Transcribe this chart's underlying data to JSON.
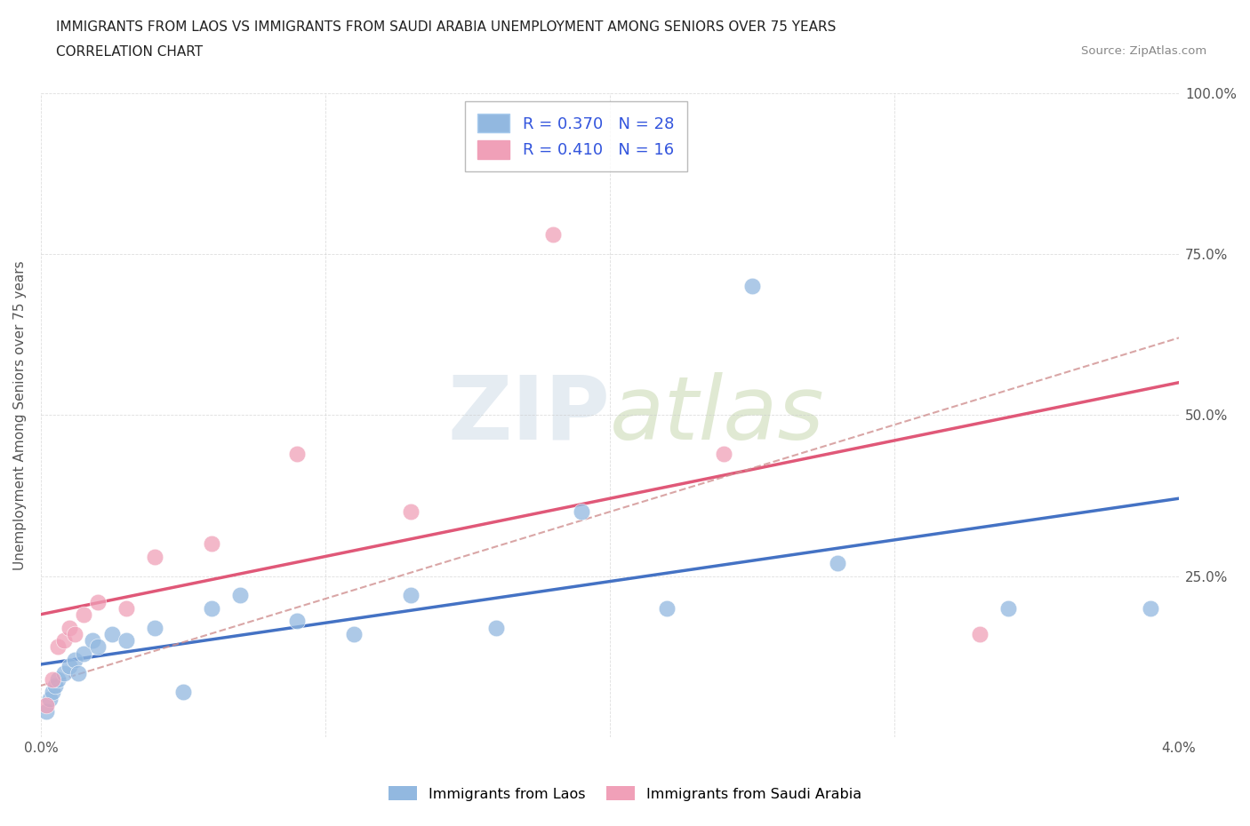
{
  "title_line1": "IMMIGRANTS FROM LAOS VS IMMIGRANTS FROM SAUDI ARABIA UNEMPLOYMENT AMONG SENIORS OVER 75 YEARS",
  "title_line2": "CORRELATION CHART",
  "source": "Source: ZipAtlas.com",
  "ylabel": "Unemployment Among Seniors over 75 years",
  "watermark_zip": "ZIP",
  "watermark_atlas": "atlas",
  "laos_R": "R = 0.370",
  "laos_N": "N = 28",
  "saudi_R": "R = 0.410",
  "saudi_N": "N = 16",
  "laos_scatter_color": "#92b8e0",
  "saudi_scatter_color": "#f0a0b8",
  "laos_line_color": "#4472c4",
  "saudi_line_color": "#e05878",
  "x_min": 0.0,
  "x_max": 0.04,
  "y_min": 0.0,
  "y_max": 1.0,
  "background_color": "#ffffff",
  "grid_color": "#c8c8c8",
  "title_fontsize": 11,
  "axis_label_color": "#555555",
  "legend_text_color": "#3355dd",
  "laos_label": "Immigrants from Laos",
  "saudi_label": "Immigrants from Saudi Arabia",
  "laos_x": [
    0.0002,
    0.0003,
    0.0004,
    0.0005,
    0.0006,
    0.0008,
    0.001,
    0.0012,
    0.0013,
    0.0015,
    0.0018,
    0.002,
    0.0025,
    0.003,
    0.004,
    0.005,
    0.006,
    0.007,
    0.009,
    0.011,
    0.013,
    0.016,
    0.019,
    0.022,
    0.025,
    0.028,
    0.034,
    0.039
  ],
  "laos_y": [
    0.04,
    0.06,
    0.07,
    0.08,
    0.09,
    0.1,
    0.11,
    0.12,
    0.1,
    0.13,
    0.15,
    0.14,
    0.16,
    0.15,
    0.17,
    0.07,
    0.2,
    0.22,
    0.18,
    0.16,
    0.22,
    0.17,
    0.35,
    0.2,
    0.7,
    0.27,
    0.2,
    0.2
  ],
  "saudi_x": [
    0.0002,
    0.0004,
    0.0006,
    0.0008,
    0.001,
    0.0012,
    0.0015,
    0.002,
    0.003,
    0.004,
    0.006,
    0.009,
    0.013,
    0.018,
    0.024,
    0.033
  ],
  "saudi_y": [
    0.05,
    0.09,
    0.14,
    0.15,
    0.17,
    0.16,
    0.19,
    0.21,
    0.2,
    0.28,
    0.3,
    0.44,
    0.35,
    0.78,
    0.44,
    0.16
  ]
}
